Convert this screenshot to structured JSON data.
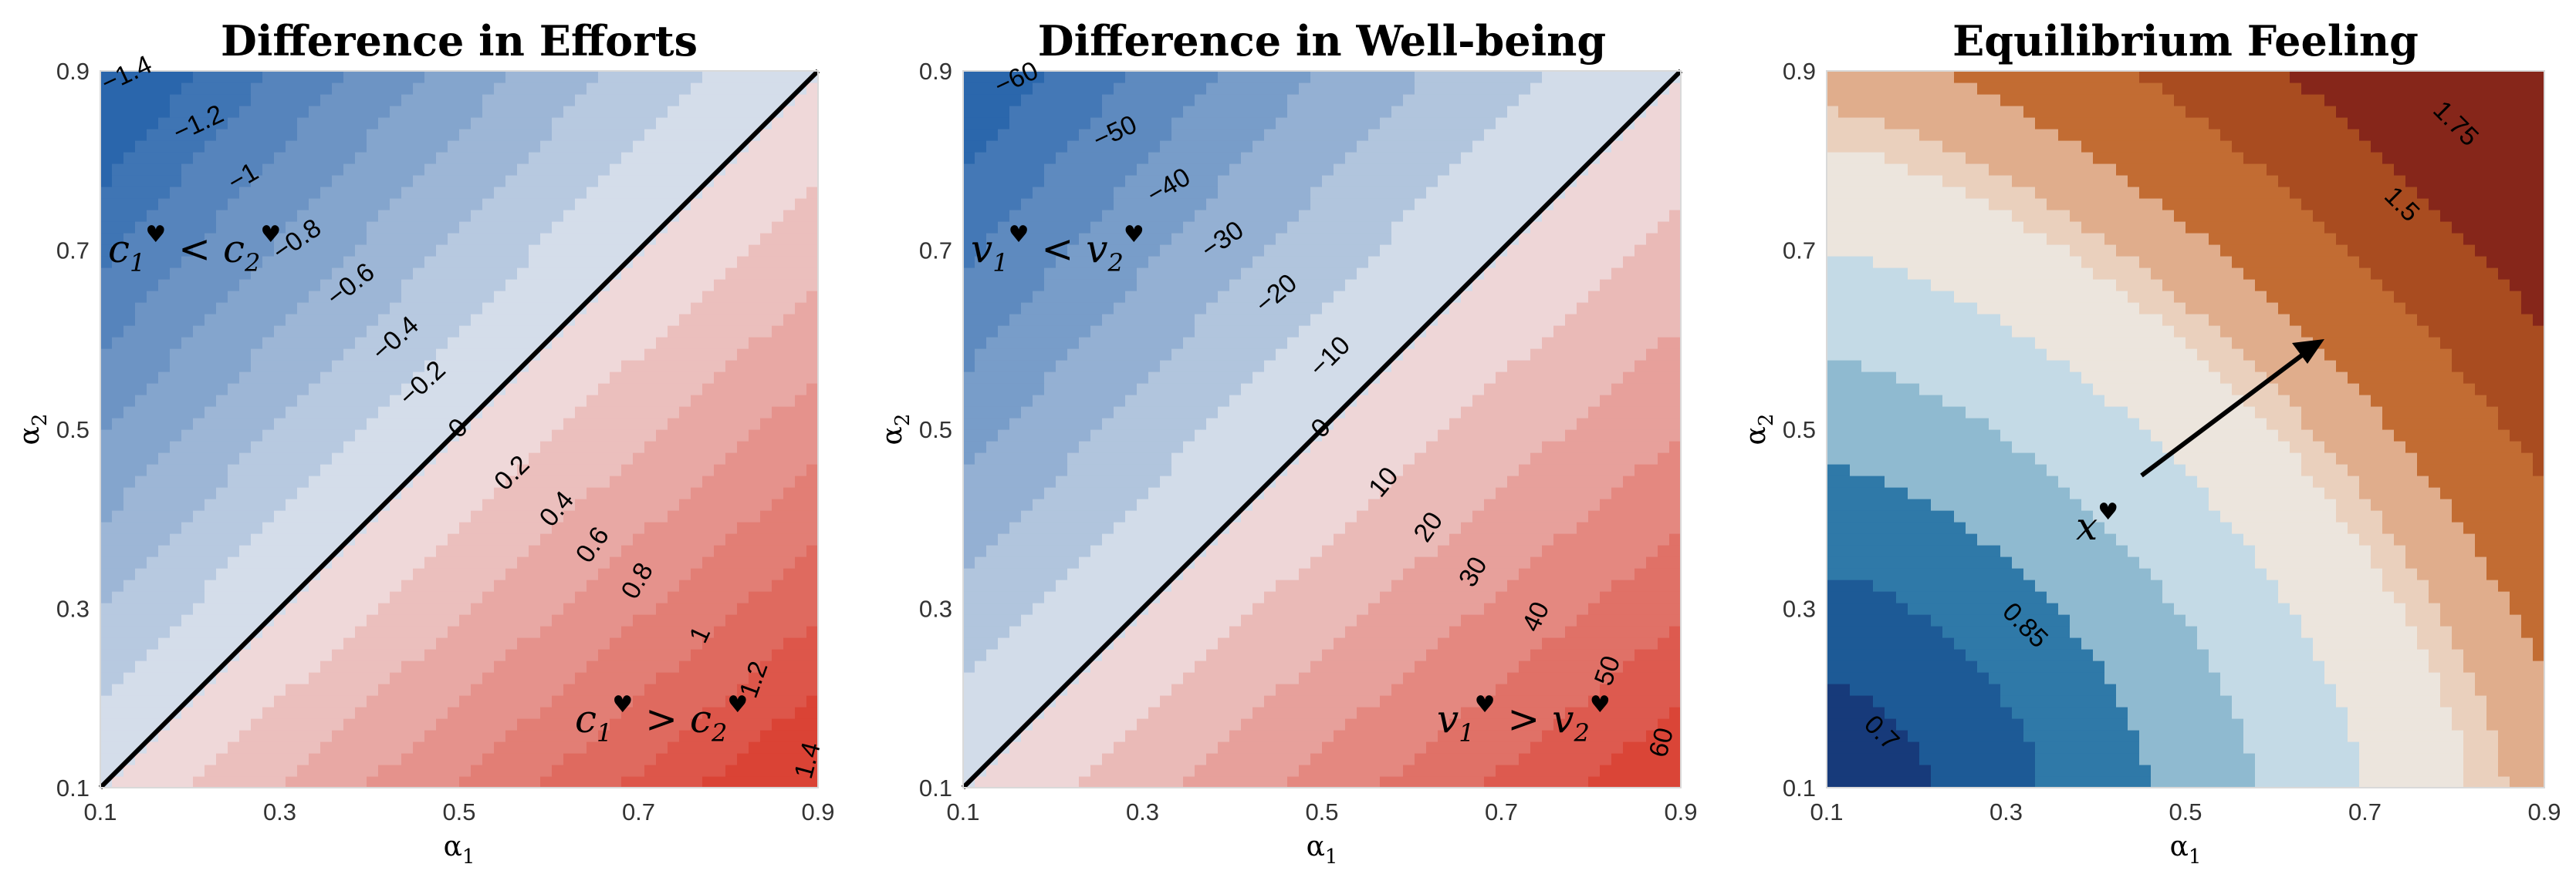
{
  "chart_data": [
    {
      "type": "contour",
      "title": "Difference in Efforts",
      "xlabel": "α₁",
      "ylabel": "α₂",
      "xlim": [
        0.1,
        0.9
      ],
      "ylim": [
        0.1,
        0.9
      ],
      "xticks": [
        "0.1",
        "0.3",
        "0.5",
        "0.7",
        "0.9"
      ],
      "yticks": [
        "0.1",
        "0.3",
        "0.5",
        "0.7",
        "0.9"
      ],
      "levels": [
        -1.6,
        -1.4,
        -1.2,
        -1.0,
        -0.8,
        -0.6,
        -0.4,
        -0.2,
        0,
        0.2,
        0.4,
        0.6,
        0.8,
        1.0,
        1.2,
        1.4,
        1.6
      ],
      "level_labels": [
        "−1.4",
        "−1.2",
        "−1",
        "−0.8",
        "−0.6",
        "−0.4",
        "−0.2",
        "0",
        "0.2",
        "0.4",
        "0.6",
        "0.8",
        "1",
        "1.2",
        "1.4"
      ],
      "colormap": "diverging blue-red",
      "colors": {
        "neg": "#1f5ea8",
        "mid": "#f2f2f5",
        "pos": "#d93a2b"
      },
      "zero_line": true,
      "annotations": [
        "c₁♥ < c₂♥",
        "c₁♥ > c₂♥"
      ]
    },
    {
      "type": "contour",
      "title": "Difference in Well-being",
      "xlabel": "α₁",
      "ylabel": "α₂",
      "xlim": [
        0.1,
        0.9
      ],
      "ylim": [
        0.1,
        0.9
      ],
      "xticks": [
        "0.1",
        "0.3",
        "0.5",
        "0.7",
        "0.9"
      ],
      "yticks": [
        "0.1",
        "0.3",
        "0.5",
        "0.7",
        "0.9"
      ],
      "levels": [
        -70,
        -60,
        -50,
        -40,
        -30,
        -20,
        -10,
        0,
        10,
        20,
        30,
        40,
        50,
        60,
        70
      ],
      "level_labels": [
        "−60",
        "−50",
        "−40",
        "−30",
        "−20",
        "−10",
        "0",
        "10",
        "20",
        "30",
        "40",
        "50",
        "60"
      ],
      "colormap": "diverging blue-red",
      "colors": {
        "neg": "#1f5ea8",
        "mid": "#f2f2f5",
        "pos": "#d93a2b"
      },
      "zero_line": true,
      "annotations": [
        "v₁♥ < v₂♥",
        "v₁♥ > v₂♥"
      ]
    },
    {
      "type": "contour",
      "title": "Equilibrium Feeling",
      "xlabel": "α₁",
      "ylabel": "α₂",
      "xlim": [
        0.1,
        0.9
      ],
      "ylim": [
        0.1,
        0.9
      ],
      "xticks": [
        "0.1",
        "0.3",
        "0.5",
        "0.7",
        "0.9"
      ],
      "yticks": [
        "0.1",
        "0.3",
        "0.5",
        "0.7",
        "0.9"
      ],
      "levels": [
        0.55,
        0.7,
        0.85,
        1.0,
        1.15,
        1.3,
        1.45,
        1.5,
        1.6,
        1.75,
        1.9,
        2.05
      ],
      "level_labels": [
        "0.7",
        "0.85",
        "1.5",
        "1.75"
      ],
      "colormap": "diverging blue-brown",
      "colors": [
        "#173a7a",
        "#1d5a96",
        "#2f79a8",
        "#5a9bc0",
        "#8fbad0",
        "#c4dae6",
        "#ece5dd",
        "#ead0bd",
        "#e0ad8c",
        "#d38d60",
        "#c26c33",
        "#a94c20",
        "#86261a"
      ],
      "arrow": {
        "from": [
          0.44,
          0.45
        ],
        "to": [
          0.65,
          0.6
        ]
      },
      "annotations": [
        "x♥"
      ]
    }
  ]
}
